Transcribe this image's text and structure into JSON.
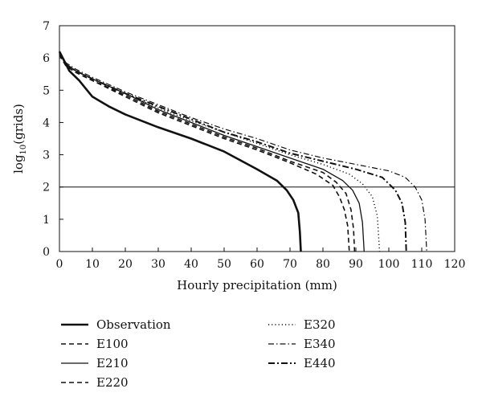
{
  "chart_data": {
    "type": "line",
    "xlabel": "Hourly precipitation (mm)",
    "ylabel_base": "log",
    "ylabel_sub": "10",
    "ylabel_rest": "(grids)",
    "xlim": [
      0,
      120
    ],
    "ylim": [
      0,
      7
    ],
    "x_ticks": [
      0,
      10,
      20,
      30,
      40,
      50,
      60,
      70,
      80,
      90,
      100,
      110,
      120
    ],
    "y_ticks": [
      0,
      1,
      2,
      3,
      4,
      5,
      6,
      7
    ],
    "grid": false,
    "reference_line_y": 2,
    "legend_position": "below",
    "series": [
      {
        "name": "Observation",
        "style": "thick-solid",
        "points": [
          [
            0,
            6.2
          ],
          [
            1,
            6.0
          ],
          [
            3,
            5.6
          ],
          [
            6,
            5.3
          ],
          [
            8,
            5.05
          ],
          [
            10,
            4.8
          ],
          [
            15,
            4.5
          ],
          [
            20,
            4.25
          ],
          [
            30,
            3.85
          ],
          [
            40,
            3.5
          ],
          [
            50,
            3.1
          ],
          [
            60,
            2.55
          ],
          [
            66,
            2.2
          ],
          [
            69,
            1.9
          ],
          [
            71,
            1.6
          ],
          [
            72.5,
            1.2
          ],
          [
            73,
            0.6
          ],
          [
            73.3,
            0
          ]
        ]
      },
      {
        "name": "E100",
        "style": "dashed",
        "points": [
          [
            0,
            6.1
          ],
          [
            2,
            5.75
          ],
          [
            5,
            5.55
          ],
          [
            10,
            5.3
          ],
          [
            20,
            4.8
          ],
          [
            30,
            4.3
          ],
          [
            40,
            3.9
          ],
          [
            50,
            3.5
          ],
          [
            60,
            3.15
          ],
          [
            70,
            2.75
          ],
          [
            78,
            2.4
          ],
          [
            83,
            2.05
          ],
          [
            85,
            1.7
          ],
          [
            86.5,
            1.3
          ],
          [
            87.5,
            0.8
          ],
          [
            88,
            0
          ]
        ]
      },
      {
        "name": "E210",
        "style": "thin-solid",
        "points": [
          [
            0,
            6.15
          ],
          [
            2,
            5.8
          ],
          [
            5,
            5.6
          ],
          [
            10,
            5.35
          ],
          [
            20,
            4.9
          ],
          [
            30,
            4.4
          ],
          [
            40,
            4.0
          ],
          [
            50,
            3.6
          ],
          [
            60,
            3.25
          ],
          [
            70,
            2.9
          ],
          [
            80,
            2.55
          ],
          [
            86,
            2.2
          ],
          [
            89,
            1.9
          ],
          [
            91,
            1.5
          ],
          [
            92,
            0.9
          ],
          [
            92.5,
            0
          ]
        ]
      },
      {
        "name": "E220",
        "style": "dashed",
        "points": [
          [
            0,
            6.1
          ],
          [
            2,
            5.75
          ],
          [
            5,
            5.55
          ],
          [
            10,
            5.3
          ],
          [
            20,
            4.85
          ],
          [
            30,
            4.35
          ],
          [
            40,
            3.95
          ],
          [
            50,
            3.55
          ],
          [
            60,
            3.2
          ],
          [
            70,
            2.8
          ],
          [
            80,
            2.45
          ],
          [
            84,
            2.15
          ],
          [
            87,
            1.8
          ],
          [
            88.5,
            1.3
          ],
          [
            89.3,
            0.7
          ],
          [
            89.6,
            0
          ]
        ]
      },
      {
        "name": "E320",
        "style": "dotted",
        "points": [
          [
            0,
            6.15
          ],
          [
            2,
            5.8
          ],
          [
            5,
            5.6
          ],
          [
            10,
            5.35
          ],
          [
            20,
            4.9
          ],
          [
            30,
            4.45
          ],
          [
            40,
            4.05
          ],
          [
            50,
            3.7
          ],
          [
            60,
            3.35
          ],
          [
            70,
            3.0
          ],
          [
            80,
            2.7
          ],
          [
            88,
            2.4
          ],
          [
            92,
            2.1
          ],
          [
            95,
            1.7
          ],
          [
            96.5,
            1.1
          ],
          [
            97.2,
            0
          ]
        ]
      },
      {
        "name": "E340",
        "style": "dash-dot",
        "points": [
          [
            0,
            6.2
          ],
          [
            2,
            5.85
          ],
          [
            5,
            5.65
          ],
          [
            10,
            5.4
          ],
          [
            20,
            4.95
          ],
          [
            30,
            4.55
          ],
          [
            40,
            4.15
          ],
          [
            50,
            3.8
          ],
          [
            60,
            3.5
          ],
          [
            70,
            3.15
          ],
          [
            80,
            2.9
          ],
          [
            90,
            2.7
          ],
          [
            100,
            2.5
          ],
          [
            105,
            2.3
          ],
          [
            108,
            2.0
          ],
          [
            110,
            1.6
          ],
          [
            111,
            1.0
          ],
          [
            111.5,
            0
          ]
        ]
      },
      {
        "name": "E440",
        "style": "dash-dot-thick",
        "points": [
          [
            0,
            6.15
          ],
          [
            2,
            5.8
          ],
          [
            5,
            5.6
          ],
          [
            10,
            5.35
          ],
          [
            20,
            4.9
          ],
          [
            30,
            4.5
          ],
          [
            40,
            4.1
          ],
          [
            50,
            3.7
          ],
          [
            60,
            3.4
          ],
          [
            70,
            3.05
          ],
          [
            80,
            2.8
          ],
          [
            90,
            2.55
          ],
          [
            98,
            2.3
          ],
          [
            102,
            1.9
          ],
          [
            104,
            1.5
          ],
          [
            105,
            0.9
          ],
          [
            105.3,
            0
          ]
        ]
      }
    ]
  }
}
